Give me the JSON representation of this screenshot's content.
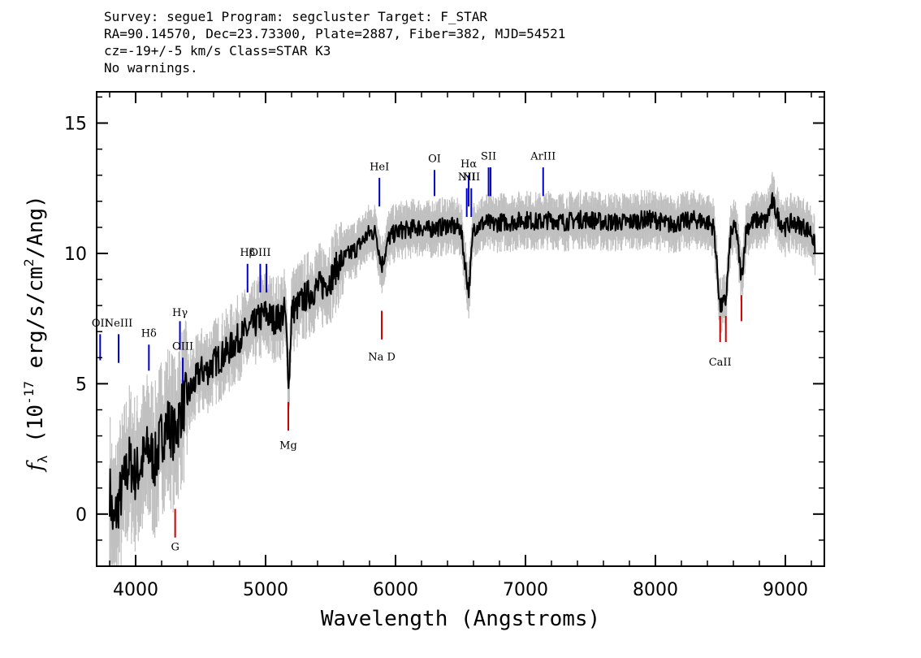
{
  "header": {
    "line1": "Survey: segue1 Program: segcluster Target: F_STAR",
    "line2": "RA=90.14570, Dec=23.73300, Plate=2887, Fiber=382, MJD=54521",
    "line3": "cz=-19+/-5 km/s Class=STAR K3",
    "line4": "No warnings."
  },
  "colors": {
    "flux": "#000000",
    "error": "#c0c0c0",
    "emission": "#0000cc",
    "absorption": "#cc0000"
  },
  "chart_data": {
    "type": "line",
    "xlabel": "Wavelength (Angstroms)",
    "ylabel": "f_λ (10^-17 erg/s/cm^2/Ang)",
    "ylabel_parts": {
      "sym": "f",
      "sub": "λ",
      "pre": " (10",
      "exp": "-17",
      "mid": " erg/s/cm",
      "exp2": "2",
      "post": "/Ang)"
    },
    "xlim": [
      3700,
      9300
    ],
    "ylim": [
      -2,
      16.2
    ],
    "xticks": [
      4000,
      5000,
      6000,
      7000,
      8000,
      9000
    ],
    "yticks": [
      0,
      5,
      10,
      15
    ],
    "series": [
      {
        "values_note": "",
        "x": [
          3800,
          3830,
          3870,
          3900,
          3950,
          4000,
          4050,
          4100,
          4150,
          4200,
          4250,
          4300,
          4350,
          4400,
          4450,
          4500,
          4550,
          4600,
          4650,
          4700,
          4750,
          4800,
          4850,
          4900,
          4950,
          5000,
          5050,
          5100,
          5150,
          5180,
          5200,
          5250,
          5300,
          5350,
          5400,
          5450,
          5500,
          5550,
          5600,
          5650,
          5700,
          5750,
          5800,
          5850,
          5893,
          5950,
          6000,
          6050,
          6100,
          6150,
          6200,
          6250,
          6300,
          6350,
          6400,
          6450,
          6500,
          6563,
          6600,
          6650,
          6700,
          6750,
          6800,
          6900,
          7000,
          7100,
          7200,
          7300,
          7400,
          7500,
          7600,
          7700,
          7800,
          7900,
          8000,
          8100,
          8200,
          8300,
          8400,
          8450,
          8498,
          8542,
          8580,
          8620,
          8662,
          8700,
          8750,
          8800,
          8850,
          8900,
          8950,
          9000,
          9050,
          9100,
          9150,
          9200,
          9230
        ],
        "y": [
          1.0,
          -0.5,
          0.5,
          1.0,
          2.0,
          1.5,
          2.0,
          2.5,
          2.0,
          3.0,
          3.5,
          3.0,
          4.0,
          4.5,
          5.0,
          5.5,
          5.5,
          5.8,
          6.0,
          6.2,
          6.5,
          6.8,
          7.0,
          7.2,
          7.5,
          7.7,
          7.5,
          7.5,
          7.8,
          5.0,
          7.8,
          8.0,
          8.3,
          8.5,
          8.7,
          8.8,
          9.0,
          9.5,
          9.8,
          10.0,
          10.2,
          10.5,
          10.8,
          10.8,
          9.5,
          10.6,
          10.8,
          10.9,
          10.9,
          11.0,
          11.0,
          10.9,
          11.0,
          11.0,
          11.1,
          11.0,
          11.0,
          8.5,
          11.0,
          11.1,
          11.2,
          11.1,
          11.2,
          11.2,
          11.3,
          11.2,
          11.3,
          11.2,
          11.3,
          11.3,
          11.2,
          11.2,
          11.2,
          11.3,
          11.3,
          11.1,
          11.2,
          11.3,
          11.2,
          11.0,
          7.9,
          8.2,
          10.8,
          11.0,
          9.0,
          11.0,
          11.2,
          11.3,
          11.2,
          12.0,
          11.3,
          11.0,
          11.2,
          11.1,
          11.0,
          10.8,
          10.2
        ]
      }
    ],
    "emission_lines": [
      {
        "label": "OII",
        "x": 3727,
        "y0": 5.9,
        "y1": 6.9,
        "label_y": 7.2
      },
      {
        "label": "NeIII",
        "x": 3869,
        "y0": 5.8,
        "y1": 6.9,
        "label_y": 7.2
      },
      {
        "label": "Hδ",
        "x": 4102,
        "y0": 5.5,
        "y1": 6.5,
        "label_y": 6.8
      },
      {
        "label": "Hγ",
        "x": 4341,
        "y0": 6.3,
        "y1": 7.4,
        "label_y": 7.6
      },
      {
        "label": "OIII",
        "x": 4363,
        "y0": 5.0,
        "y1": 6.0,
        "label_y": 6.3
      },
      {
        "label": "Hβ",
        "x": 4861,
        "y0": 8.5,
        "y1": 9.6,
        "label_y": 9.9
      },
      {
        "label": "OIII",
        "x": 4959,
        "y0": 8.5,
        "y1": 9.6,
        "label_y": 9.9
      },
      {
        "label": "OIII",
        "x": 5007,
        "y0": 8.5,
        "y1": 9.6,
        "label_y": 9.9,
        "hide_label": true
      },
      {
        "label": "HeI",
        "x": 5876,
        "y0": 11.8,
        "y1": 12.9,
        "label_y": 13.2
      },
      {
        "label": "OI",
        "x": 6300,
        "y0": 12.2,
        "y1": 13.2,
        "label_y": 13.5
      },
      {
        "label": "NII",
        "x": 6548,
        "y0": 11.4,
        "y1": 12.5,
        "label_y": 12.8
      },
      {
        "label": "Hα",
        "x": 6563,
        "y0": 11.8,
        "y1": 13.0,
        "label_y": 13.3
      },
      {
        "label": "NII",
        "x": 6583,
        "y0": 11.4,
        "y1": 12.5,
        "label_y": 12.8
      },
      {
        "label": "SII",
        "x": 6716,
        "y0": 12.2,
        "y1": 13.3,
        "label_y": 13.6
      },
      {
        "label": "SII",
        "x": 6731,
        "y0": 12.2,
        "y1": 13.3,
        "label_y": 13.6,
        "hide_label": true
      },
      {
        "label": "ArIII",
        "x": 7136,
        "y0": 12.2,
        "y1": 13.3,
        "label_y": 13.6
      }
    ],
    "absorption_lines": [
      {
        "label": "G",
        "x": 4304,
        "y0": -0.9,
        "y1": 0.2,
        "label_y": -1.4
      },
      {
        "label": "Mg",
        "x": 5175,
        "y0": 3.2,
        "y1": 4.3,
        "label_y": 2.5
      },
      {
        "label": "Na D",
        "x": 5894,
        "y0": 6.7,
        "y1": 7.8,
        "label_y": 5.9
      },
      {
        "label": "CaII",
        "x": 8498,
        "y0": 6.6,
        "y1": 7.6,
        "label_y": 5.7
      },
      {
        "label": "CaII",
        "x": 8542,
        "y0": 6.6,
        "y1": 7.6,
        "label_y": 5.7,
        "hide_label": true
      },
      {
        "label": "CaII",
        "x": 8662,
        "y0": 7.4,
        "y1": 8.4,
        "label_y": 7.0,
        "hide_label": true
      }
    ]
  }
}
